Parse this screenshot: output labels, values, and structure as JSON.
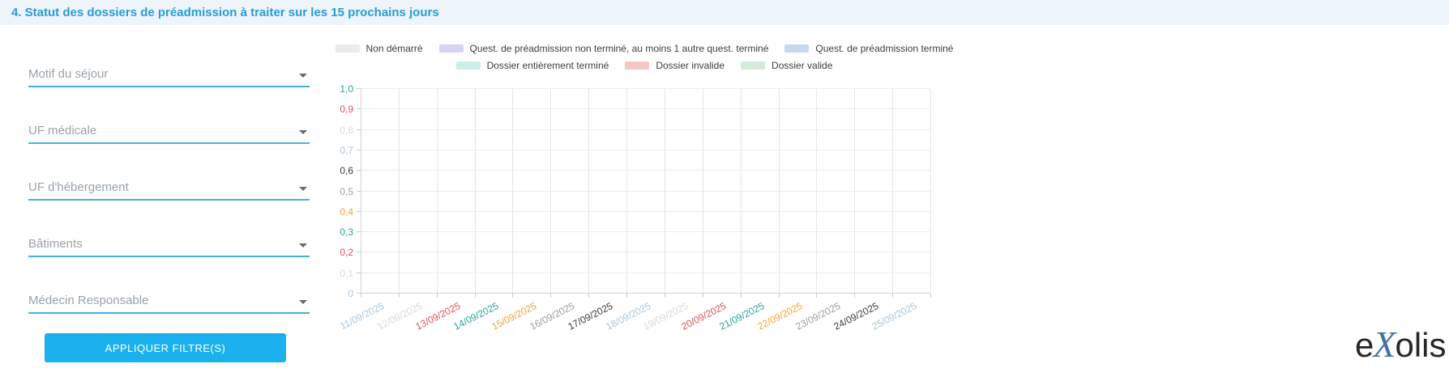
{
  "header": {
    "title": "4. Statut des dossiers de préadmission à traiter sur les 15 prochains jours"
  },
  "filters": {
    "fields": [
      {
        "label": "Motif du séjour"
      },
      {
        "label": "UF médicale"
      },
      {
        "label": "UF d'hébergement"
      },
      {
        "label": "Bâtiments"
      },
      {
        "label": "Médecin Responsable"
      }
    ],
    "apply_button": "APPLIQUER FILTRE(S)"
  },
  "chart_data": {
    "type": "bar",
    "stacked": true,
    "title": "",
    "categories": [
      "11/09/2025",
      "12/09/2025",
      "13/09/2025",
      "14/09/2025",
      "15/09/2025",
      "16/09/2025",
      "17/09/2025",
      "18/09/2025",
      "19/09/2025",
      "20/09/2025",
      "21/09/2025",
      "22/09/2025",
      "23/09/2025",
      "24/09/2025",
      "25/09/2025"
    ],
    "series": [
      {
        "name": "Non démarré",
        "color": "#ebebeb",
        "values": [
          0,
          0,
          0,
          0,
          0,
          0,
          0,
          0,
          0,
          0,
          0,
          0,
          0,
          0,
          0
        ]
      },
      {
        "name": "Quest. de préadmission non terminé, au moins 1 autre quest. terminé",
        "color": "#d7d3f2",
        "values": [
          0,
          0,
          0,
          0,
          0,
          0,
          0,
          0,
          0,
          0,
          0,
          0,
          0,
          0,
          0
        ]
      },
      {
        "name": "Quest. de préadmission terminé",
        "color": "#c6d9f1",
        "values": [
          0,
          0,
          0,
          0,
          0,
          0,
          0,
          0,
          0,
          0,
          0,
          0,
          0,
          0,
          0
        ]
      },
      {
        "name": "Dossier entièrement terminé",
        "color": "#cdefe9",
        "values": [
          0,
          0,
          0,
          0,
          0,
          0,
          0,
          0,
          0,
          0,
          0,
          0,
          0,
          0,
          0
        ]
      },
      {
        "name": "Dossier invalide",
        "color": "#f6c8c4",
        "values": [
          0,
          0,
          0,
          0,
          0,
          0,
          0,
          0,
          0,
          0,
          0,
          0,
          0,
          0,
          0
        ]
      },
      {
        "name": "Dossier valide",
        "color": "#d4ebd9",
        "values": [
          0,
          0,
          0,
          0,
          0,
          0,
          0,
          0,
          0,
          0,
          0,
          0,
          0,
          0,
          0
        ]
      }
    ],
    "ylim": [
      0,
      1
    ],
    "ytick_labels": [
      "0",
      "0,1",
      "0,2",
      "0,3",
      "0,4",
      "0,5",
      "0,6",
      "0,7",
      "0,8",
      "0,9",
      "1,0"
    ],
    "grid": true,
    "legend_position": "top",
    "tick_label_color_cycle": [
      "#a9c6dc",
      "#d9d9d9",
      "#df5353",
      "#26a69a",
      "#f2a43e",
      "#9e9e9e",
      "#3d3d3d"
    ]
  },
  "logo": {
    "e": "e",
    "x": "X",
    "olis": "olis"
  }
}
